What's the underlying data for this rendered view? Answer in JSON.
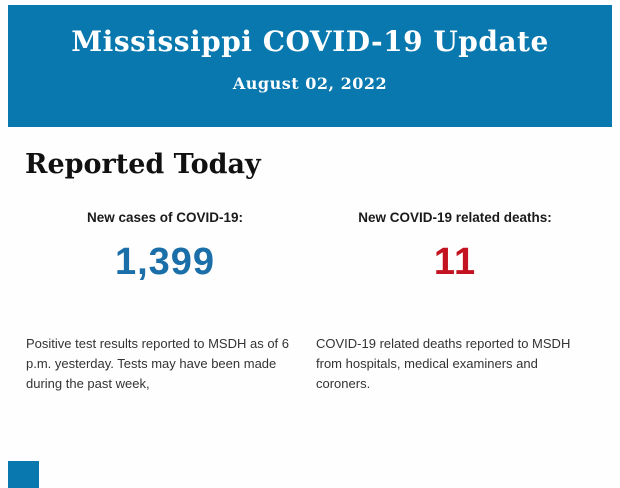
{
  "banner": {
    "title": "Mississippi COVID-19 Update",
    "date": "August 02, 2022",
    "bg_color": "#0878ae",
    "text_color": "#ffffff"
  },
  "section": {
    "heading": "Reported Today"
  },
  "stats": [
    {
      "label": "New cases of COVID-19:",
      "value": "1,399",
      "value_color": "#1b6fa8",
      "description": "Positive test results reported to MSDH as of 6 p.m. yesterday. Tests may have been made during the past week,"
    },
    {
      "label": "New COVID-19 related deaths:",
      "value": "11",
      "value_color": "#c41320",
      "description": "COVID-19 related deaths reported to MSDH from hospitals, medical examiners and coroners."
    }
  ],
  "decor": {
    "corner_square_color": "#0878ae"
  }
}
